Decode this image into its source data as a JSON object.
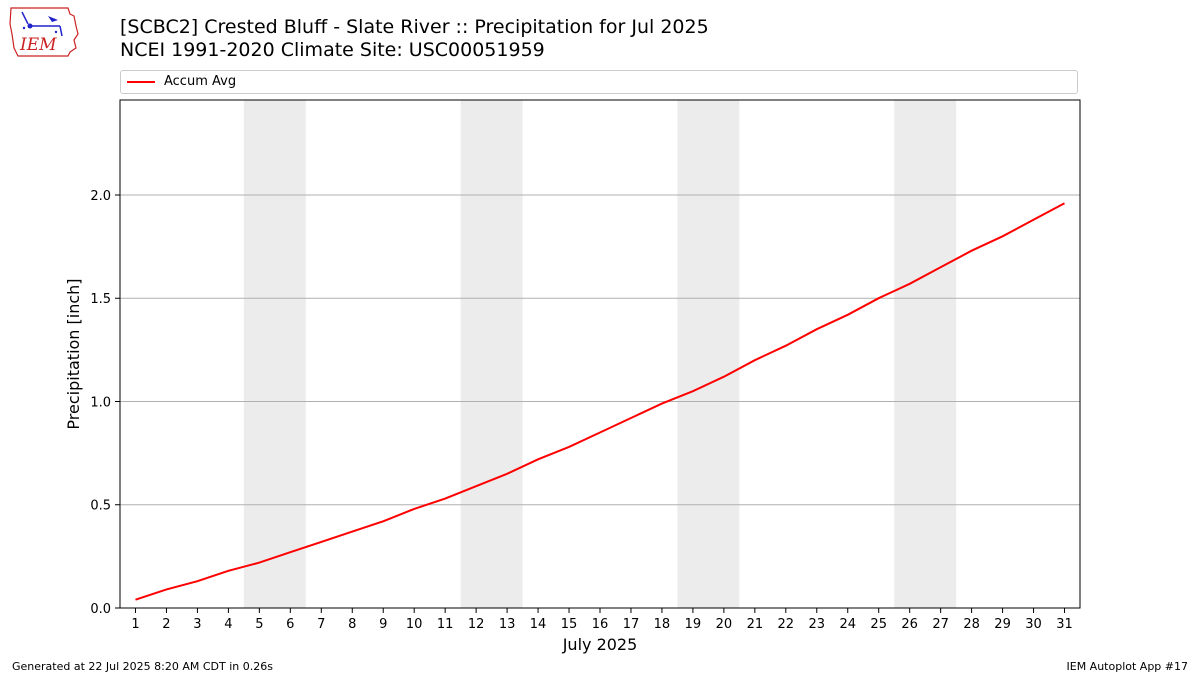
{
  "header": {
    "title_line1": "[SCBC2] Crested Bluff - Slate River :: Precipitation for Jul 2025",
    "title_line2": "NCEI 1991-2020 Climate Site: USC00051959",
    "logo_text": "IEM"
  },
  "legend": {
    "entries": [
      "Accum Avg"
    ]
  },
  "footer": {
    "left": "Generated at 22 Jul 2025 8:20 AM CDT in 0.26s",
    "right": "IEM Autoplot App #17"
  },
  "chart_data": {
    "type": "line",
    "xlabel": "July 2025",
    "ylabel": "Precipitation [inch]",
    "xlim": [
      0.5,
      31.5
    ],
    "ylim": [
      0,
      2.46
    ],
    "x_ticks": [
      1,
      2,
      3,
      4,
      5,
      6,
      7,
      8,
      9,
      10,
      11,
      12,
      13,
      14,
      15,
      16,
      17,
      18,
      19,
      20,
      21,
      22,
      23,
      24,
      25,
      26,
      27,
      28,
      29,
      30,
      31
    ],
    "y_ticks": [
      0.0,
      0.5,
      1.0,
      1.5,
      2.0
    ],
    "y_tick_labels": [
      "0.0",
      "0.5",
      "1.0",
      "1.5",
      "2.0"
    ],
    "grid": "horizontal",
    "legend_position": "top",
    "weekend_bands": [
      [
        4.5,
        6.5
      ],
      [
        11.5,
        13.5
      ],
      [
        18.5,
        20.5
      ],
      [
        25.5,
        27.5
      ]
    ],
    "band_color": "#ececec",
    "series": [
      {
        "name": "Accum Avg",
        "color": "#ff0000",
        "x": [
          1,
          2,
          3,
          4,
          5,
          6,
          7,
          8,
          9,
          10,
          11,
          12,
          13,
          14,
          15,
          16,
          17,
          18,
          19,
          20,
          21,
          22,
          23,
          24,
          25,
          26,
          27,
          28,
          29,
          30,
          31
        ],
        "values": [
          0.04,
          0.09,
          0.13,
          0.18,
          0.22,
          0.27,
          0.32,
          0.37,
          0.42,
          0.48,
          0.53,
          0.59,
          0.65,
          0.72,
          0.78,
          0.85,
          0.92,
          0.99,
          1.05,
          1.12,
          1.2,
          1.27,
          1.35,
          1.42,
          1.5,
          1.57,
          1.65,
          1.73,
          1.8,
          1.88,
          1.96
        ]
      }
    ]
  }
}
